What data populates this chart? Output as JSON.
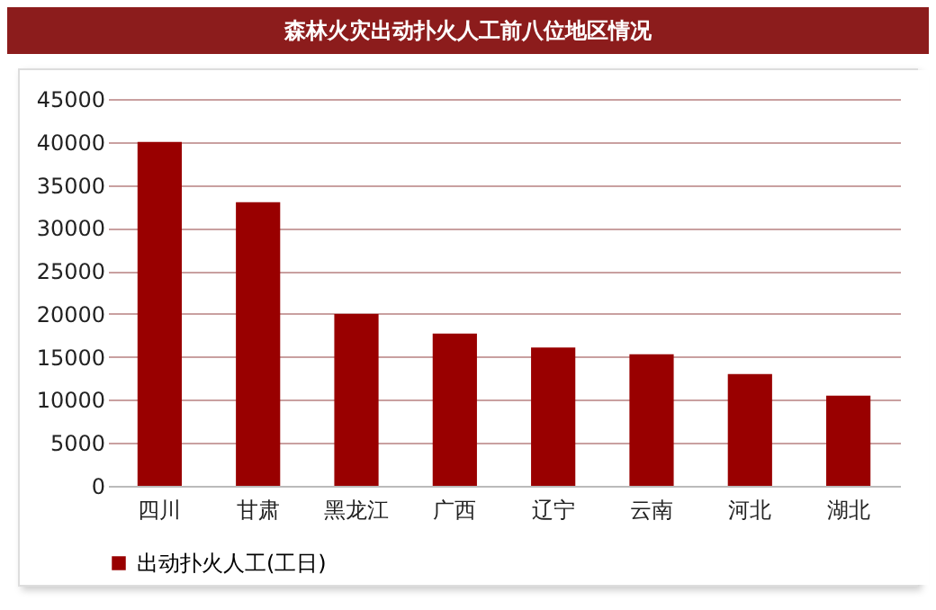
{
  "chart_data": {
    "type": "bar",
    "title": "森林火灾出动扑火人工前八位地区情况",
    "categories": [
      "四川",
      "甘肃",
      "黑龙江",
      "广西",
      "辽宁",
      "云南",
      "河北",
      "湖北"
    ],
    "series": [
      {
        "name": "出动扑火人工(工日)",
        "color": "#990000",
        "values": [
          40000,
          33000,
          20000,
          17700,
          16100,
          15300,
          13000,
          10500
        ]
      }
    ],
    "ylim": [
      0,
      45000
    ],
    "yticks": [
      0,
      5000,
      10000,
      15000,
      20000,
      25000,
      30000,
      35000,
      40000,
      45000
    ],
    "grid": "y",
    "legend": "bottom"
  }
}
